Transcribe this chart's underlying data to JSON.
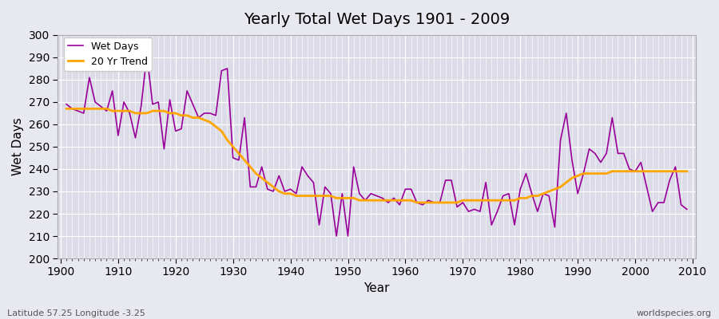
{
  "title": "Yearly Total Wet Days 1901 - 2009",
  "xlabel": "Year",
  "ylabel": "Wet Days",
  "footer_left": "Latitude 57.25 Longitude -3.25",
  "footer_right": "worldspecies.org",
  "legend_wet": "Wet Days",
  "legend_trend": "20 Yr Trend",
  "ylim": [
    200,
    300
  ],
  "yticks": [
    200,
    210,
    220,
    230,
    240,
    250,
    260,
    270,
    280,
    290,
    300
  ],
  "wet_days_color": "#990099",
  "trend_color": "#FFA500",
  "bg_color": "#E8E8F0",
  "plot_bg_color": "#DCDCE8",
  "years": [
    1901,
    1902,
    1903,
    1904,
    1905,
    1906,
    1907,
    1908,
    1909,
    1910,
    1911,
    1912,
    1913,
    1914,
    1915,
    1916,
    1917,
    1918,
    1919,
    1920,
    1921,
    1922,
    1923,
    1924,
    1925,
    1926,
    1927,
    1928,
    1929,
    1930,
    1931,
    1932,
    1933,
    1934,
    1935,
    1936,
    1937,
    1938,
    1939,
    1940,
    1941,
    1942,
    1943,
    1944,
    1945,
    1946,
    1947,
    1948,
    1949,
    1950,
    1951,
    1952,
    1953,
    1954,
    1955,
    1956,
    1957,
    1958,
    1959,
    1960,
    1961,
    1962,
    1963,
    1964,
    1965,
    1966,
    1967,
    1968,
    1969,
    1970,
    1971,
    1972,
    1973,
    1974,
    1975,
    1976,
    1977,
    1978,
    1979,
    1980,
    1981,
    1982,
    1983,
    1984,
    1985,
    1986,
    1987,
    1988,
    1989,
    1990,
    1991,
    1992,
    1993,
    1994,
    1995,
    1996,
    1997,
    1998,
    1999,
    2000,
    2001,
    2002,
    2003,
    2004,
    2005,
    2006,
    2007,
    2008,
    2009
  ],
  "wet_days": [
    269,
    267,
    266,
    265,
    281,
    270,
    268,
    266,
    275,
    255,
    270,
    265,
    254,
    268,
    291,
    269,
    270,
    249,
    271,
    257,
    258,
    275,
    269,
    263,
    265,
    265,
    264,
    284,
    285,
    245,
    244,
    263,
    232,
    232,
    241,
    231,
    230,
    237,
    230,
    231,
    229,
    241,
    237,
    234,
    215,
    232,
    229,
    210,
    229,
    210,
    241,
    229,
    226,
    229,
    228,
    227,
    225,
    227,
    224,
    231,
    231,
    225,
    224,
    226,
    225,
    225,
    235,
    235,
    223,
    225,
    221,
    222,
    221,
    234,
    215,
    221,
    228,
    229,
    215,
    231,
    238,
    229,
    221,
    229,
    228,
    214,
    253,
    265,
    244,
    229,
    238,
    249,
    247,
    243,
    247,
    263,
    247,
    247,
    240,
    239,
    243,
    232,
    221,
    225,
    225,
    235,
    241,
    224,
    222
  ],
  "trend": [
    267,
    267,
    267,
    267,
    267,
    267,
    267,
    267,
    266,
    266,
    266,
    266,
    265,
    265,
    265,
    266,
    266,
    266,
    265,
    265,
    264,
    264,
    263,
    263,
    262,
    261,
    259,
    257,
    253,
    250,
    247,
    244,
    241,
    238,
    236,
    234,
    232,
    230,
    229,
    229,
    228,
    228,
    228,
    228,
    228,
    228,
    228,
    227,
    227,
    227,
    227,
    226,
    226,
    226,
    226,
    226,
    226,
    226,
    226,
    226,
    226,
    225,
    225,
    225,
    225,
    225,
    225,
    225,
    225,
    226,
    226,
    226,
    226,
    226,
    226,
    226,
    226,
    226,
    226,
    227,
    227,
    228,
    228,
    229,
    230,
    231,
    232,
    234,
    236,
    237,
    238,
    238,
    238,
    238,
    238,
    239,
    239,
    239,
    239,
    239,
    239,
    239,
    239,
    239,
    239,
    239,
    239,
    239,
    239
  ]
}
